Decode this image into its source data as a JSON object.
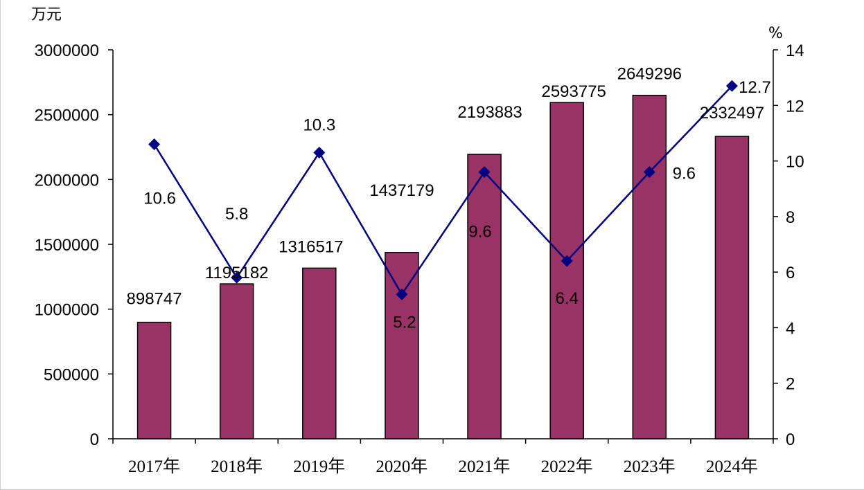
{
  "chart_data": {
    "type": "bar+line",
    "categories": [
      "2017年",
      "2018年",
      "2019年",
      "2020年",
      "2021年",
      "2022年",
      "2023年",
      "2024年"
    ],
    "series": [
      {
        "type": "bar",
        "axis": "left",
        "values": [
          898747,
          1195182,
          1316517,
          1437179,
          2193883,
          2593775,
          2649296,
          2332497
        ],
        "labels": [
          "898747",
          "1195182",
          "1316517",
          "1437179",
          "2193883",
          "2593775",
          "2649296",
          "2332497"
        ],
        "color": "#993366"
      },
      {
        "type": "line",
        "axis": "right",
        "values": [
          10.6,
          5.8,
          10.3,
          5.2,
          9.6,
          6.4,
          9.6,
          12.7
        ],
        "labels": [
          "10.6",
          "5.8",
          "10.3",
          "5.2",
          "9.6",
          "6.4",
          "9.6",
          "12.7"
        ],
        "color": "#000080"
      }
    ],
    "left_axis": {
      "unit": "万元",
      "ylim": [
        0,
        3000000
      ],
      "ticks": [
        "0",
        "500000",
        "1000000",
        "1500000",
        "2000000",
        "2500000",
        "3000000"
      ]
    },
    "right_axis": {
      "unit": "%",
      "ylim": [
        0,
        14
      ],
      "ticks": [
        "0",
        "2",
        "4",
        "6",
        "8",
        "10",
        "12",
        "14"
      ]
    },
    "grid": false,
    "legend": "none"
  }
}
